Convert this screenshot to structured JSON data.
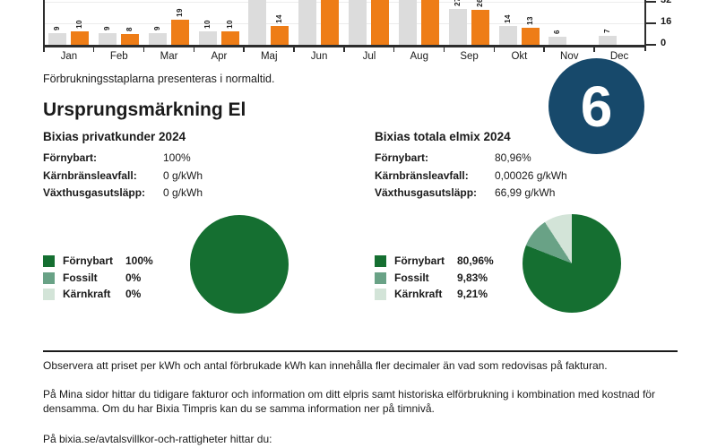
{
  "page": {
    "heading": "Ursprungsmärkning El",
    "chart_note": "Förbrukningsstaplarna presenteras i normaltid.",
    "badge_number": "6"
  },
  "colors": {
    "orange": "#ee7d17",
    "bar_gray": "#dcdcdc",
    "dark_green": "#156f31",
    "mid_green": "#69a286",
    "light_green": "#d3e4d8",
    "badge_blue": "#17496b",
    "axis": "#2d2d2d"
  },
  "chart_data": [
    {
      "type": "bar",
      "categories": [
        "Jan",
        "Feb",
        "Mar",
        "Apr",
        "Maj",
        "Jun",
        "Jul",
        "Aug",
        "Sep",
        "Okt",
        "Nov",
        "Dec"
      ],
      "series": [
        {
          "name": "gray-bars",
          "color": "#dcdcdc",
          "values": [
            9,
            9,
            9,
            10,
            null,
            null,
            null,
            null,
            27,
            14,
            6,
            7
          ]
        },
        {
          "name": "orange-bars",
          "color": "#ee7d17",
          "values": [
            10,
            8,
            19,
            10,
            14,
            null,
            null,
            null,
            26,
            13,
            0,
            0
          ]
        }
      ],
      "yticks": [
        0,
        16,
        32
      ],
      "ylim_visible": [
        0,
        33
      ],
      "grid": true,
      "axis_side": "right",
      "value_labels_rotated": true
    },
    {
      "type": "pie",
      "title": "Bixias privatkunder 2024",
      "labels": [
        "Förnybart",
        "Fossilt",
        "Kärnkraft"
      ],
      "values": [
        100,
        0,
        0
      ],
      "display_values": [
        "100%",
        "0%",
        "0%"
      ],
      "colors": [
        "#156f31",
        "#69a286",
        "#d3e4d8"
      ]
    },
    {
      "type": "pie",
      "title": "Bixias totala elmix 2024",
      "labels": [
        "Förnybart",
        "Fossilt",
        "Kärnkraft"
      ],
      "values": [
        80.96,
        9.83,
        9.21
      ],
      "display_values": [
        "80,96%",
        "9,83%",
        "9,21%"
      ],
      "colors": [
        "#156f31",
        "#69a286",
        "#d3e4d8"
      ]
    }
  ],
  "sections": {
    "left": {
      "title": "Bixias privatkunder 2024",
      "rows": [
        {
          "label": "Förnybart:",
          "value": "100%"
        },
        {
          "label": "Kärnbränsleavfall:",
          "value": "0 g/kWh"
        },
        {
          "label": "Växthusgasutsläpp:",
          "value": "0 g/kWh"
        }
      ]
    },
    "right": {
      "title": "Bixias totala elmix 2024",
      "rows": [
        {
          "label": "Förnybart:",
          "value": "80,96%"
        },
        {
          "label": "Kärnbränsleavfall:",
          "value": "0,00026 g/kWh"
        },
        {
          "label": "Växthusgasutsläpp:",
          "value": "66,99 g/kWh"
        }
      ]
    }
  },
  "footer": {
    "para1": "Observera att priset per kWh och antal förbrukade kWh kan innehålla fler decimaler än vad som redovisas på fakturan.",
    "para2": "På Mina sidor hittar du tidigare fakturor och information om ditt elpris samt historiska elförbrukning i kombination med kostnad för densamma. Om du har Bixia Timpris kan du se samma information ner på timnivå.",
    "para3": "På bixia.se/avtalsvillkor-och-rattigheter hittar du:"
  }
}
